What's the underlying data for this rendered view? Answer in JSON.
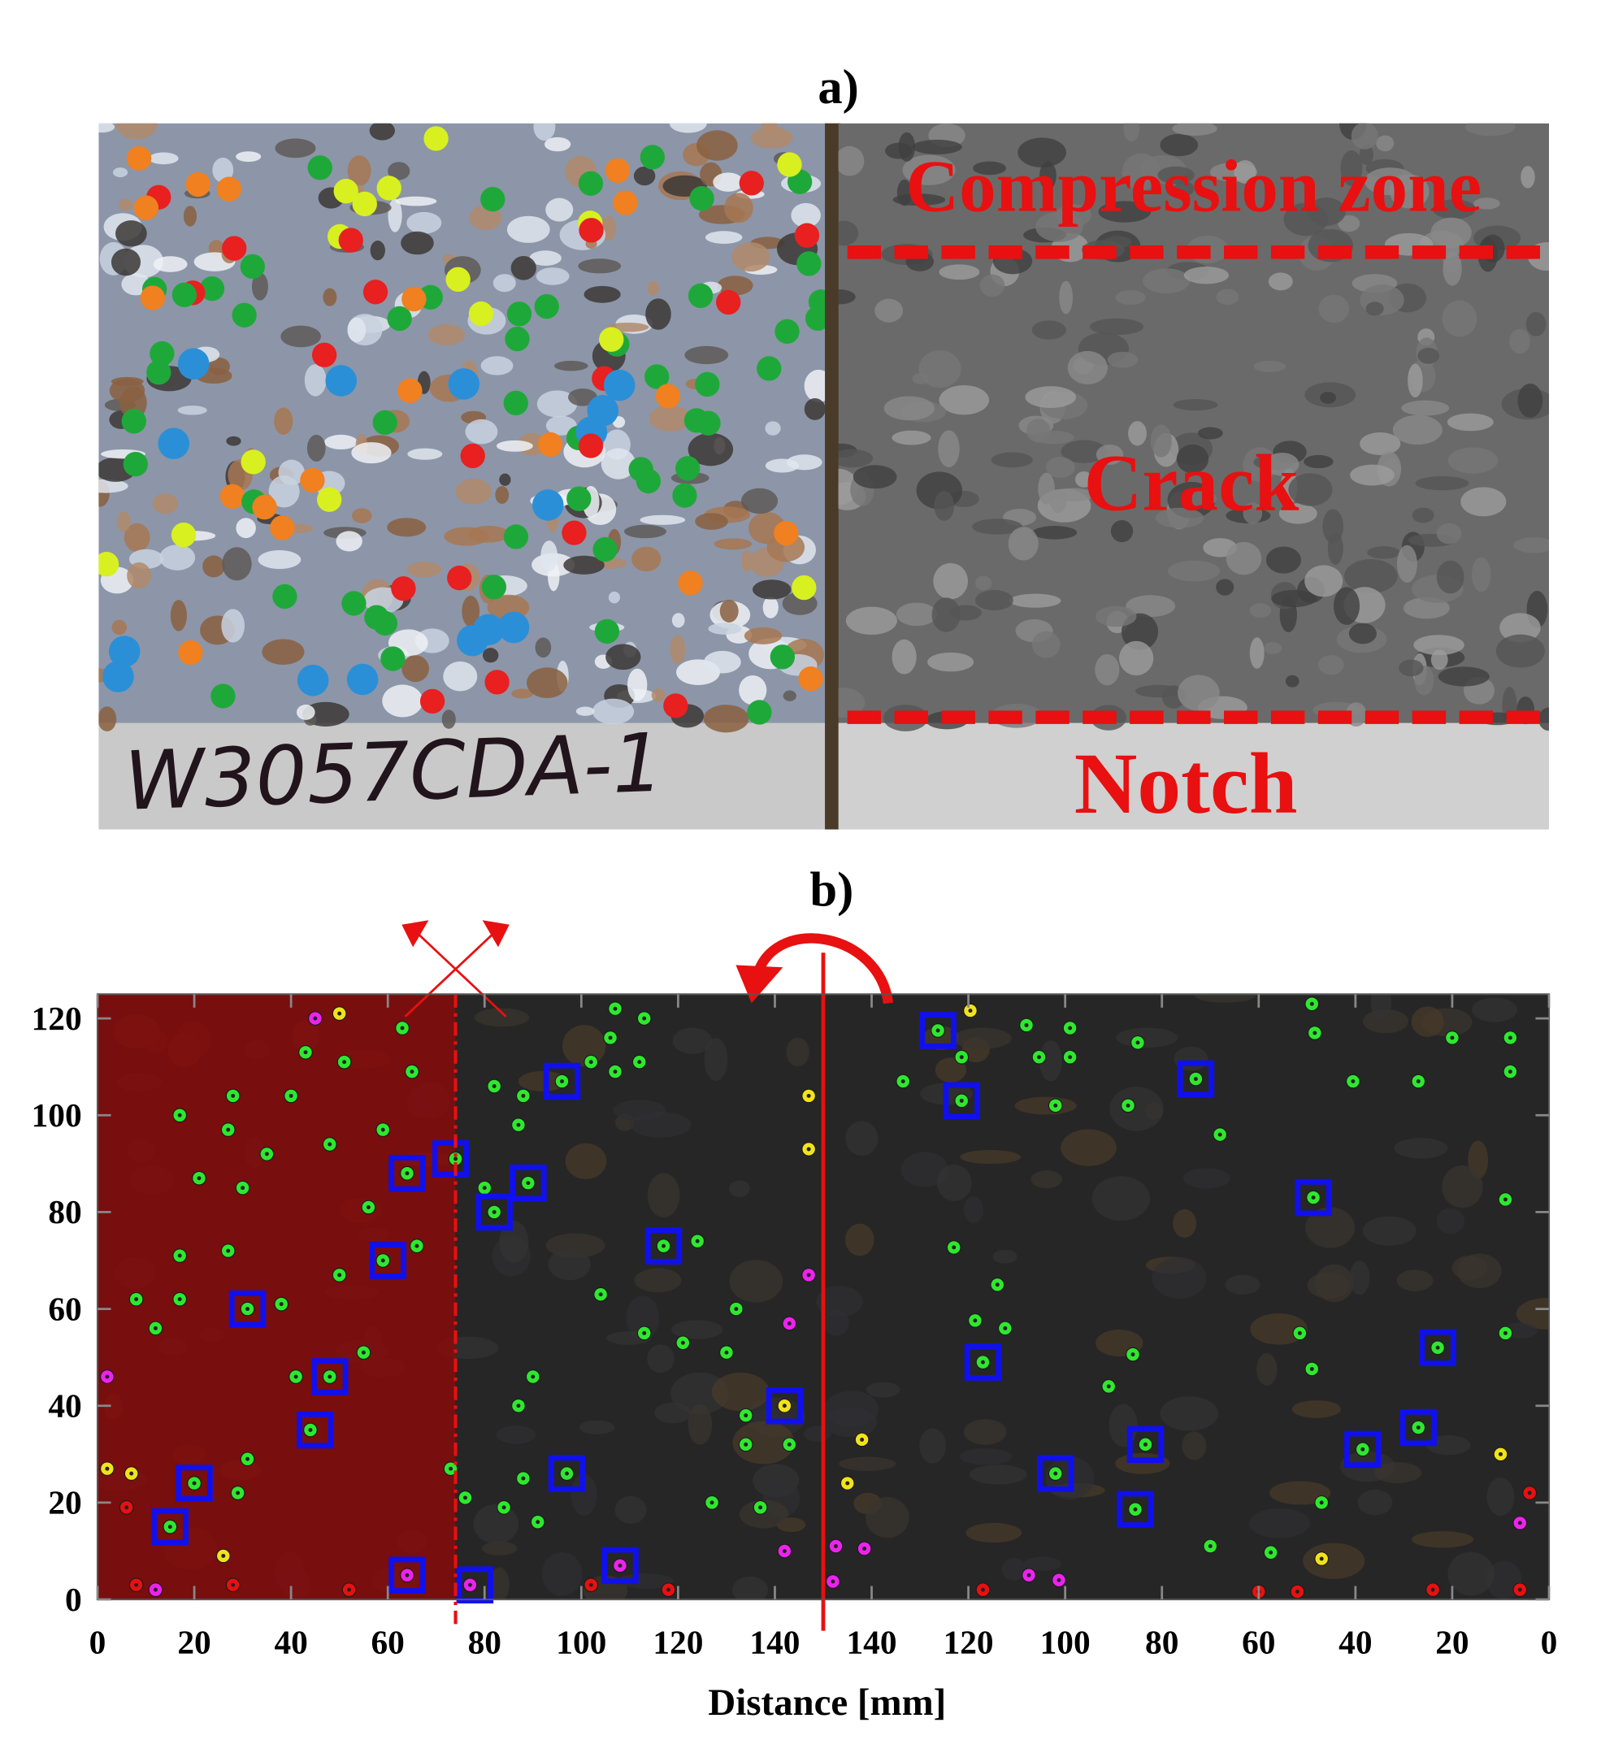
{
  "figure": {
    "panel_a": {
      "label": "a)",
      "compression": "Compression zone",
      "crack": "Crack",
      "notch": "Notch",
      "specimen": "W3057CDA-1"
    },
    "panel_b_label": "b)"
  },
  "chart_data": {
    "type": "scatter",
    "x_label": "Distance [mm]",
    "xlim": [
      0,
      300
    ],
    "ylim": [
      0,
      125
    ],
    "xticks": [
      0,
      20,
      40,
      60,
      80,
      100,
      120,
      140,
      {
        "value": 160,
        "label": "140"
      },
      {
        "value": 180,
        "label": "120"
      },
      {
        "value": 200,
        "label": "100"
      },
      {
        "value": 220,
        "label": "80"
      },
      {
        "value": 240,
        "label": "60"
      },
      {
        "value": 260,
        "label": "40"
      },
      {
        "value": 280,
        "label": "20"
      },
      {
        "value": 300,
        "label": "0"
      }
    ],
    "yticks": [
      0,
      20,
      40,
      60,
      80,
      100,
      120
    ],
    "span": {
      "x": [
        0,
        74
      ],
      "color": "#8b0a0a"
    },
    "vlines": [
      {
        "x": 74,
        "style": "dashed",
        "color": "#e81010"
      },
      {
        "x": 150,
        "style": "solid",
        "color": "#e81010"
      }
    ],
    "series": [
      {
        "color": "#2ee82e",
        "marker": "circle",
        "x": [
          63,
          43,
          51,
          65,
          28,
          40,
          17,
          27,
          48,
          35,
          59,
          21,
          30,
          56,
          64,
          74,
          27,
          17,
          66,
          50,
          59,
          8,
          17,
          38,
          31,
          12,
          55,
          41,
          48,
          44,
          31,
          73,
          29,
          20,
          15,
          76,
          82,
          87,
          88,
          96,
          107,
          106,
          113,
          107,
          102,
          112,
          80,
          82,
          89,
          117,
          124,
          104,
          113,
          121,
          132,
          130,
          134,
          134,
          143,
          87,
          90,
          88,
          84,
          91,
          97,
          127,
          137,
          166.5,
          173.7,
          178.6,
          178.6,
          192,
          194.6,
          201,
          201,
          198,
          215,
          213,
          227,
          232,
          251,
          251.6,
          259.5,
          273,
          280,
          292,
          292,
          251.3,
          291,
          177,
          186,
          181.4,
          187.6,
          183,
          214,
          209,
          248.5,
          251,
          277,
          291,
          198,
          216.6,
          214.5,
          253,
          230,
          242.5,
          261.5,
          273
        ],
        "values": [
          118,
          113,
          111,
          109,
          104,
          104,
          100,
          97,
          94,
          92,
          97,
          87,
          85,
          81,
          88,
          91,
          72,
          71,
          73,
          67,
          70,
          62,
          62,
          61,
          60,
          56,
          51,
          46,
          46,
          35,
          29,
          27,
          22,
          24,
          15,
          21,
          106,
          98,
          104,
          107,
          122,
          116,
          120,
          109,
          111,
          111,
          85,
          80,
          86,
          73,
          74,
          63,
          55,
          53,
          60,
          51,
          38,
          32,
          32,
          40,
          46,
          25,
          19,
          16,
          26,
          20,
          19,
          107,
          117.5,
          112,
          103,
          118.6,
          112,
          118,
          112,
          102,
          115,
          102,
          107.5,
          96,
          123,
          117,
          107,
          107,
          116,
          116,
          109,
          83,
          82.6,
          72.7,
          65,
          57.6,
          56,
          49,
          50.6,
          44,
          55,
          47.6,
          52,
          55,
          26,
          32,
          18.6,
          20,
          11,
          9.7,
          31,
          35.5
        ]
      },
      {
        "color": "#f2e21a",
        "marker": "circle",
        "x": [
          2,
          7,
          26,
          50,
          147,
          147,
          142,
          158,
          155,
          180.4,
          290,
          253
        ],
        "values": [
          27,
          26,
          9,
          121,
          104,
          93,
          40,
          33,
          24,
          121.6,
          30,
          8.4
        ]
      },
      {
        "color": "#ee22ee",
        "marker": "circle",
        "x": [
          2,
          12,
          45,
          64,
          77,
          147,
          143,
          142,
          108,
          152.6,
          152,
          158.5,
          192.5,
          198.7,
          294
        ],
        "values": [
          46,
          2,
          120,
          5,
          3,
          67,
          57,
          10,
          7,
          11,
          3.7,
          10.5,
          5,
          4,
          15.8
        ]
      },
      {
        "color": "#e81010",
        "marker": "circle",
        "x": [
          6,
          8,
          28,
          52,
          102,
          118,
          183,
          240,
          248,
          276,
          294,
          296
        ],
        "values": [
          19,
          3,
          3,
          2,
          3,
          2,
          2,
          1.6,
          1.6,
          2,
          2,
          22
        ]
      },
      {
        "color": "#1010ee",
        "marker": "square",
        "x": [
          64,
          73,
          60,
          31,
          48,
          45,
          20,
          15,
          64,
          78,
          96,
          82,
          89,
          117,
          142,
          97,
          108,
          173.7,
          178.6,
          227,
          251.3,
          183,
          277,
          198,
          216.6,
          214.5,
          261.5,
          273
        ],
        "values": [
          88,
          91,
          70,
          60,
          46,
          35,
          24,
          15,
          5,
          3,
          107,
          80,
          86,
          73,
          40,
          26,
          7,
          117.5,
          103,
          107.5,
          83,
          49,
          52,
          26,
          32,
          18.6,
          31,
          35.5
        ]
      }
    ]
  }
}
